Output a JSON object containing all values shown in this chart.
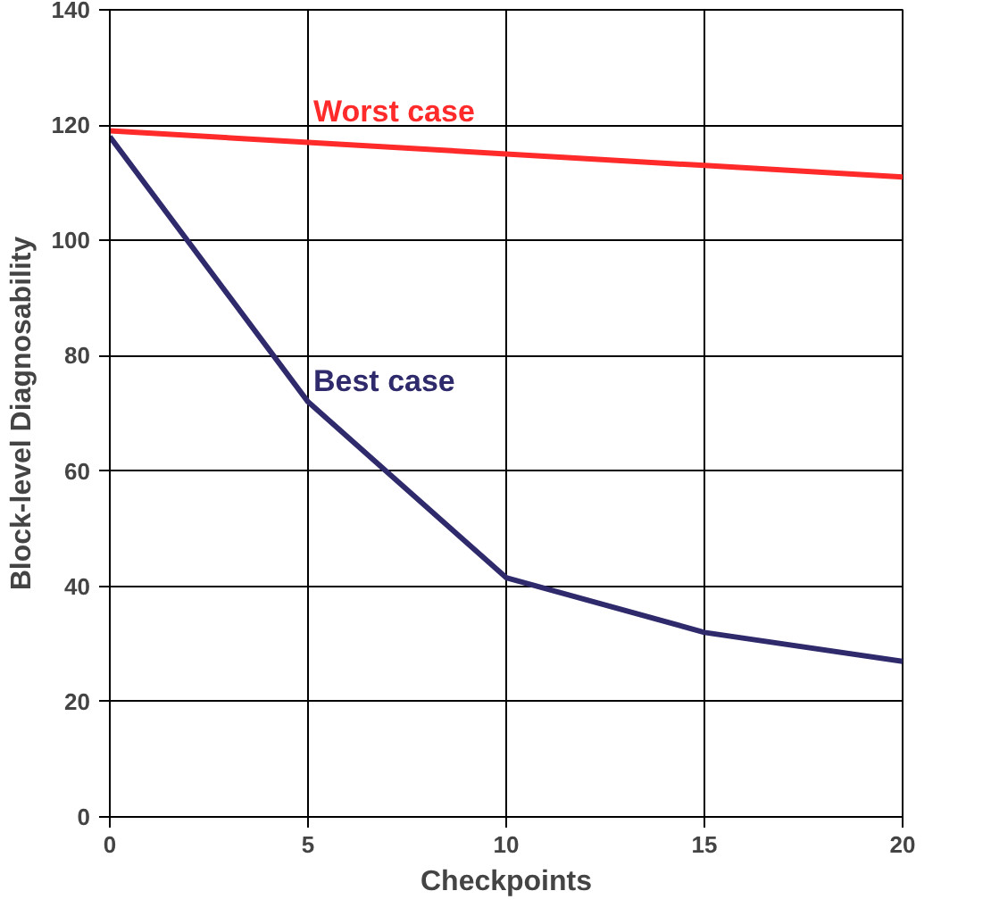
{
  "chart_data": {
    "type": "line",
    "xlabel": "Checkpoints",
    "ylabel": "Block-level Diagnosability",
    "x": [
      0,
      5,
      10,
      15,
      20
    ],
    "series": [
      {
        "name": "Worst case",
        "color": "#ff2a2a",
        "values": [
          119,
          117,
          115,
          113,
          111
        ]
      },
      {
        "name": "Best case",
        "color": "#2e2a6b",
        "values": [
          118,
          72,
          41.5,
          32,
          27
        ]
      }
    ],
    "xlim": [
      0,
      20
    ],
    "xticks": [
      0,
      5,
      10,
      15,
      20
    ],
    "ylim": [
      0,
      140
    ],
    "yticks": [
      0,
      20,
      40,
      60,
      80,
      100,
      120,
      140
    ],
    "grid": true,
    "marker": "none",
    "line_style": "solid"
  }
}
